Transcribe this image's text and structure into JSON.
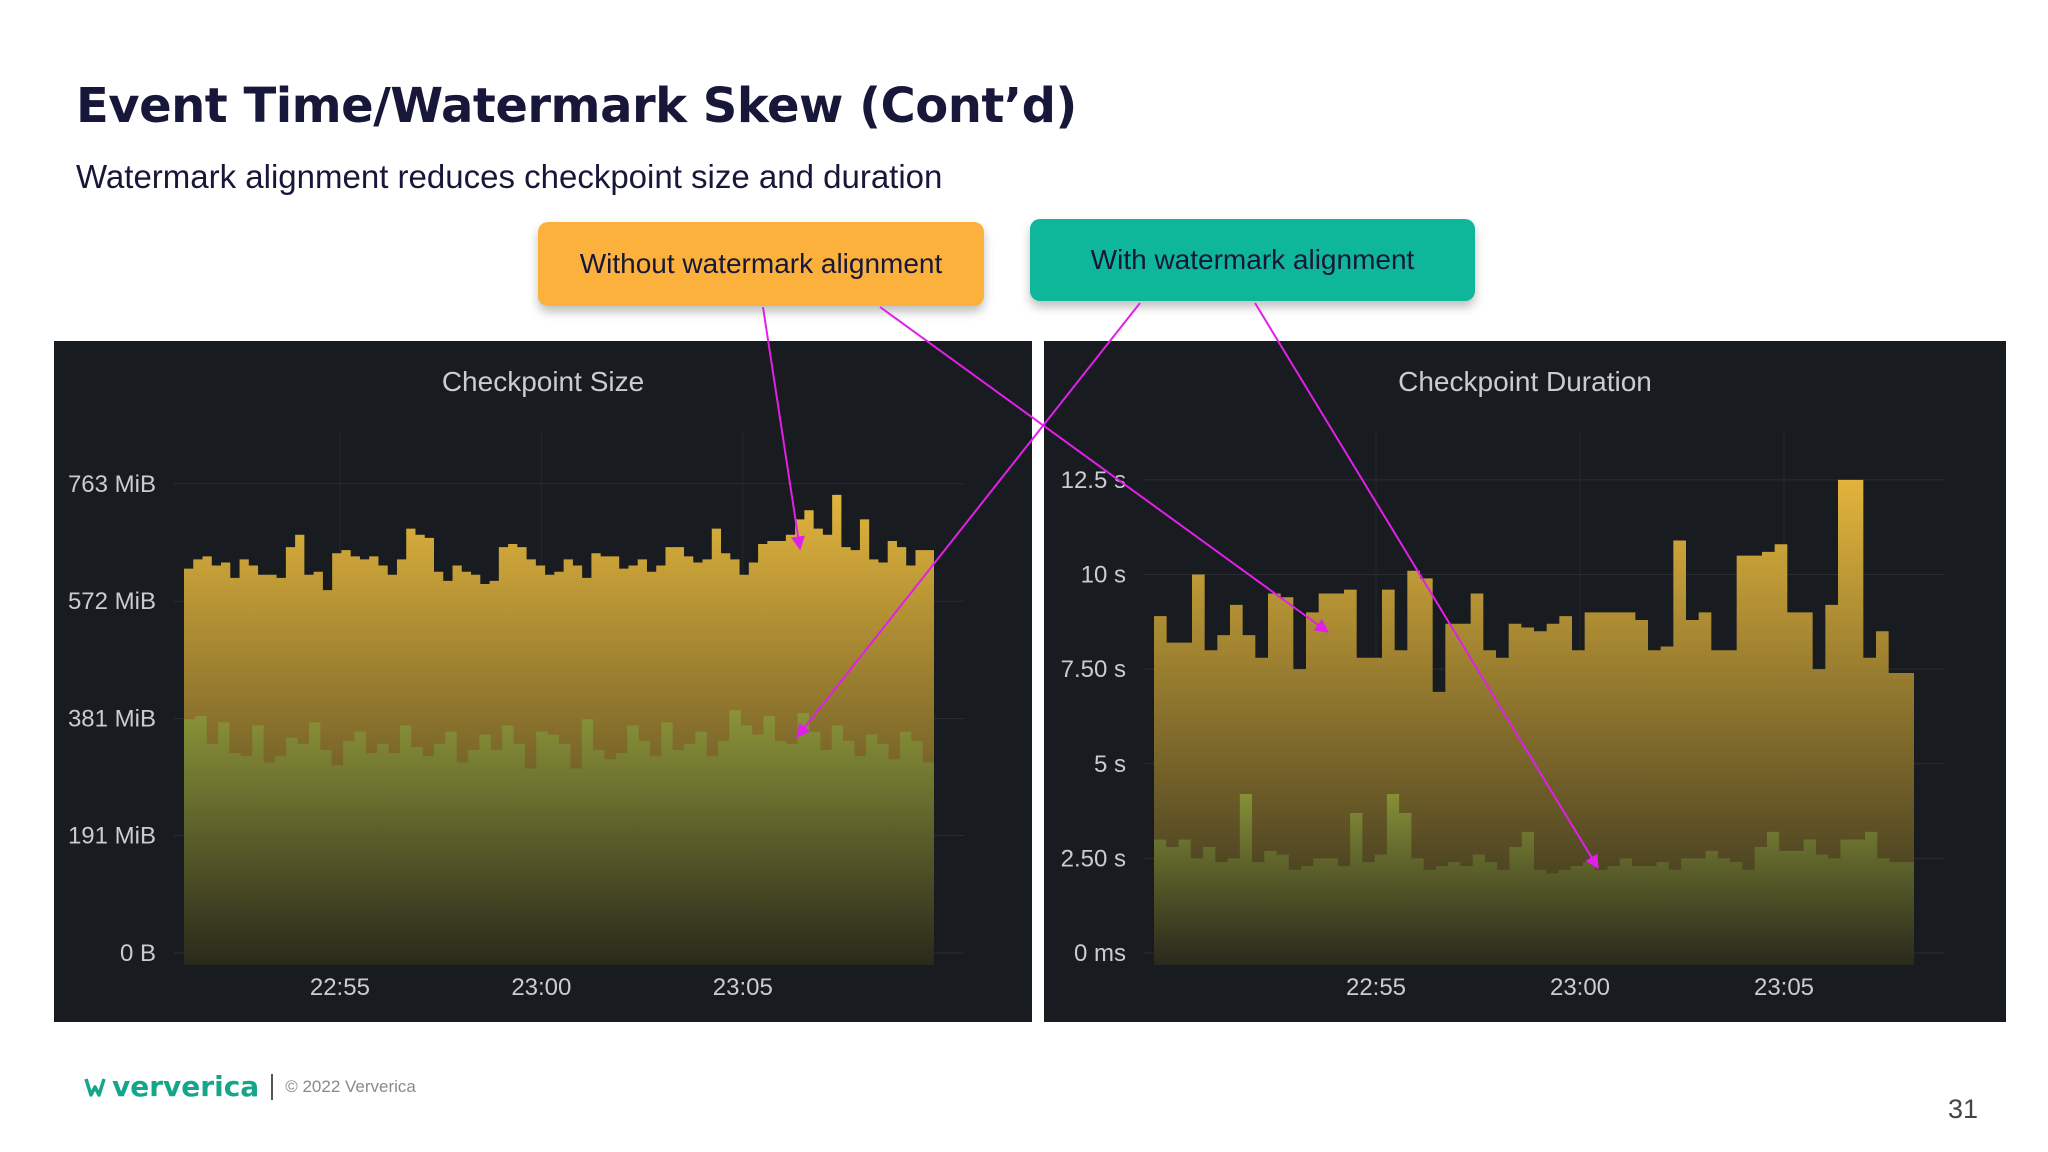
{
  "slide": {
    "title": "Event Time/Watermark Skew (Cont’d)",
    "subtitle": "Watermark alignment reduces checkpoint size and duration",
    "callout_without": "Without watermark alignment",
    "callout_with": "With watermark alignment",
    "page_number": "31",
    "logo_text": "ververica",
    "copyright": "© 2022 Ververica"
  },
  "colors": {
    "panel_bg": "#181b1f",
    "orange": "#fbb13c",
    "teal": "#0fb79a",
    "arrow": "#e020e8",
    "bar_top": "#e2b43c",
    "bar_bottom": "#2a2a1c",
    "green_top": "#8a9a3a"
  },
  "chart_data": [
    {
      "type": "area",
      "title": "Checkpoint Size",
      "ytick_labels": [
        "0 B",
        "191 MiB",
        "381 MiB",
        "572 MiB",
        "763 MiB"
      ],
      "ytick_values": [
        0,
        191,
        381,
        572,
        763
      ],
      "xtick_labels": [
        "22:55",
        "23:00",
        "23:05"
      ],
      "ylim": [
        0,
        800
      ],
      "unit": "MiB",
      "grid": true,
      "series": [
        {
          "values": [
            625,
            640,
            645,
            630,
            635,
            610,
            640,
            630,
            615,
            615,
            610,
            660,
            680,
            615,
            620,
            590,
            650,
            655,
            645,
            640,
            645,
            630,
            615,
            640,
            690,
            680,
            675,
            620,
            605,
            630,
            620,
            615,
            600,
            605,
            660,
            665,
            660,
            640,
            630,
            615,
            620,
            640,
            630,
            610,
            650,
            645,
            645,
            625,
            630,
            640,
            620,
            630,
            660,
            660,
            645,
            635,
            640,
            690,
            650,
            640,
            615,
            635,
            665,
            670,
            670,
            680,
            705,
            720,
            690,
            680,
            745,
            660,
            655,
            705,
            640,
            635,
            670,
            660,
            630,
            655,
            655
          ]
        },
        {
          "values": [
            380,
            385,
            340,
            375,
            325,
            320,
            370,
            310,
            320,
            350,
            340,
            375,
            330,
            305,
            345,
            360,
            325,
            340,
            325,
            370,
            335,
            320,
            340,
            360,
            310,
            330,
            355,
            330,
            370,
            340,
            300,
            360,
            355,
            340,
            300,
            380,
            330,
            315,
            325,
            370,
            345,
            320,
            375,
            330,
            340,
            360,
            320,
            345,
            395,
            370,
            355,
            385,
            345,
            340,
            390,
            360,
            330,
            370,
            345,
            320,
            355,
            340,
            315,
            360,
            345,
            310
          ]
        }
      ]
    },
    {
      "type": "area",
      "title": "Checkpoint Duration",
      "ytick_labels": [
        "0 ms",
        "2.50 s",
        "5 s",
        "7.50 s",
        "10 s",
        "12.5 s"
      ],
      "ytick_values": [
        0,
        2.5,
        5,
        7.5,
        10,
        12.5
      ],
      "xtick_labels": [
        "22:55",
        "23:00",
        "23:05"
      ],
      "ylim": [
        0,
        13
      ],
      "unit": "s",
      "grid": true,
      "series": [
        {
          "values": [
            8.9,
            8.2,
            8.2,
            10.0,
            8.0,
            8.4,
            9.2,
            8.4,
            7.8,
            9.5,
            9.4,
            7.5,
            9.0,
            9.5,
            9.5,
            9.6,
            7.8,
            7.8,
            9.6,
            8.0,
            10.1,
            9.9,
            6.9,
            8.7,
            8.7,
            9.5,
            8.0,
            7.8,
            8.7,
            8.6,
            8.5,
            8.7,
            8.9,
            8.0,
            9.0,
            9.0,
            9.0,
            9.0,
            8.8,
            8.0,
            8.1,
            10.9,
            8.8,
            9.0,
            8.0,
            8.0,
            10.5,
            10.5,
            10.6,
            10.8,
            9.0,
            9.0,
            7.5,
            9.2,
            12.5,
            12.5,
            7.8,
            8.5,
            7.4,
            7.4
          ]
        },
        {
          "values": [
            3.0,
            2.8,
            3.0,
            2.5,
            2.8,
            2.4,
            2.5,
            4.2,
            2.4,
            2.7,
            2.6,
            2.2,
            2.3,
            2.5,
            2.5,
            2.3,
            3.7,
            2.4,
            2.6,
            4.2,
            3.7,
            2.5,
            2.2,
            2.3,
            2.4,
            2.3,
            2.6,
            2.4,
            2.2,
            2.8,
            3.2,
            2.2,
            2.1,
            2.2,
            2.3,
            2.4,
            2.2,
            2.3,
            2.5,
            2.3,
            2.3,
            2.4,
            2.2,
            2.5,
            2.5,
            2.7,
            2.5,
            2.4,
            2.2,
            2.8,
            3.2,
            2.7,
            2.7,
            3.0,
            2.6,
            2.5,
            3.0,
            3.0,
            3.2,
            2.5,
            2.4,
            2.4
          ]
        }
      ]
    }
  ]
}
